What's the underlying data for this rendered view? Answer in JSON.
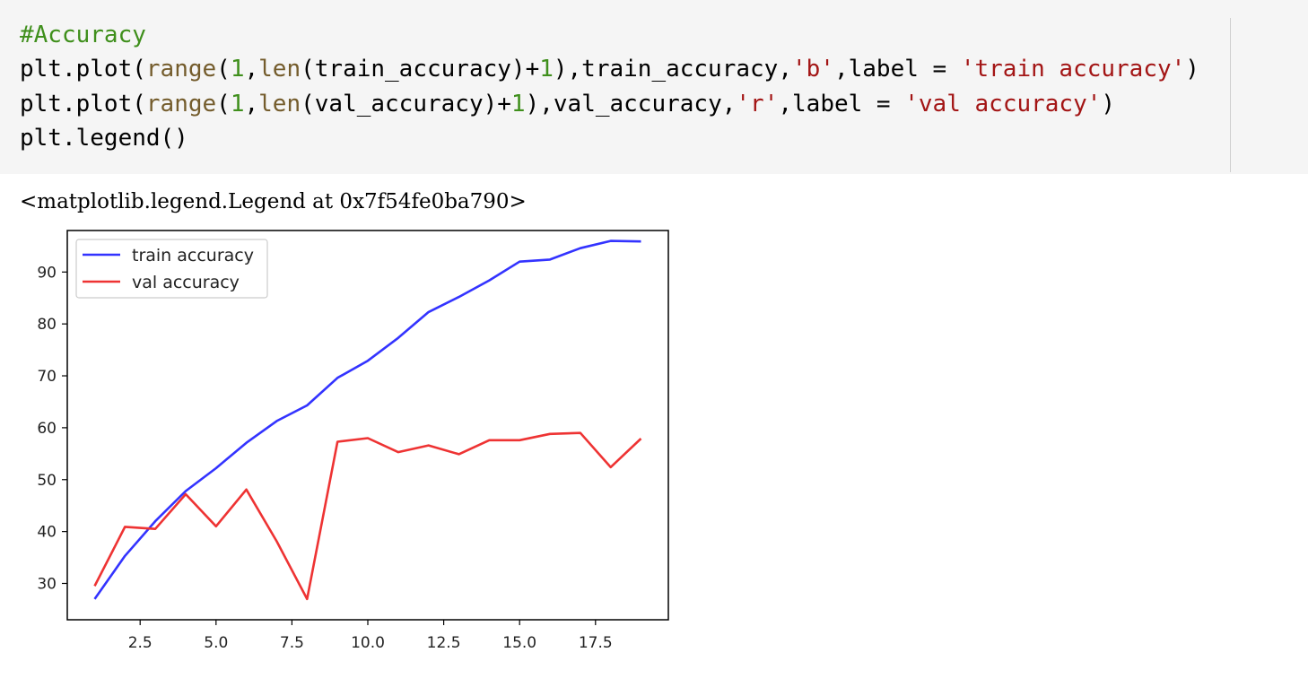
{
  "code_cell": {
    "lines": [
      [
        {
          "t": "#Accuracy",
          "c": "comment"
        }
      ],
      [
        {
          "t": "plt.plot("
        },
        {
          "t": "range",
          "c": "builtin"
        },
        {
          "t": "("
        },
        {
          "t": "1",
          "c": "num"
        },
        {
          "t": ","
        },
        {
          "t": "len",
          "c": "builtin"
        },
        {
          "t": "(train_accuracy)+"
        },
        {
          "t": "1",
          "c": "num"
        },
        {
          "t": "),train_accuracy,"
        },
        {
          "t": "'b'",
          "c": "str"
        },
        {
          "t": ",label = "
        },
        {
          "t": "'train accuracy'",
          "c": "str"
        },
        {
          "t": ")"
        }
      ],
      [
        {
          "t": "plt.plot("
        },
        {
          "t": "range",
          "c": "builtin"
        },
        {
          "t": "("
        },
        {
          "t": "1",
          "c": "num"
        },
        {
          "t": ","
        },
        {
          "t": "len",
          "c": "builtin"
        },
        {
          "t": "(val_accuracy)+"
        },
        {
          "t": "1",
          "c": "num"
        },
        {
          "t": "),val_accuracy,"
        },
        {
          "t": "'r'",
          "c": "str"
        },
        {
          "t": ",label = "
        },
        {
          "t": "'val accuracy'",
          "c": "str"
        },
        {
          "t": ")"
        }
      ],
      [
        {
          "t": "plt.legend()"
        }
      ]
    ]
  },
  "output": {
    "text": "<matplotlib.legend.Legend at 0x7f54fe0ba790>"
  },
  "chart_data": {
    "type": "line",
    "xlim": [
      0.1,
      19.9
    ],
    "ylim": [
      23,
      98
    ],
    "xticks": [
      2.5,
      5.0,
      7.5,
      10.0,
      12.5,
      15.0,
      17.5
    ],
    "xtick_labels": [
      "2.5",
      "5.0",
      "7.5",
      "10.0",
      "12.5",
      "15.0",
      "17.5"
    ],
    "yticks": [
      30,
      40,
      50,
      60,
      70,
      80,
      90
    ],
    "ytick_labels": [
      "30",
      "40",
      "50",
      "60",
      "70",
      "80",
      "90"
    ],
    "legend": "top-left",
    "grid": false,
    "x": [
      1,
      2,
      3,
      4,
      5,
      6,
      7,
      8,
      9,
      10,
      11,
      12,
      13,
      14,
      15,
      16,
      17,
      18,
      19
    ],
    "series": [
      {
        "name": "train accuracy",
        "color": "#3333ff",
        "values": [
          27.0,
          35.3,
          42.0,
          47.8,
          52.2,
          57.1,
          61.3,
          64.3,
          69.6,
          72.9,
          77.3,
          82.3,
          85.2,
          88.4,
          92.0,
          92.4,
          94.6,
          96.0,
          95.9
        ]
      },
      {
        "name": "val accuracy",
        "color": "#ee3333",
        "values": [
          29.5,
          40.9,
          40.5,
          47.2,
          41.0,
          48.1,
          38.1,
          27.0,
          57.3,
          58.0,
          55.3,
          56.6,
          54.9,
          57.6,
          57.6,
          58.8,
          59.0,
          52.4,
          57.9
        ]
      }
    ]
  }
}
